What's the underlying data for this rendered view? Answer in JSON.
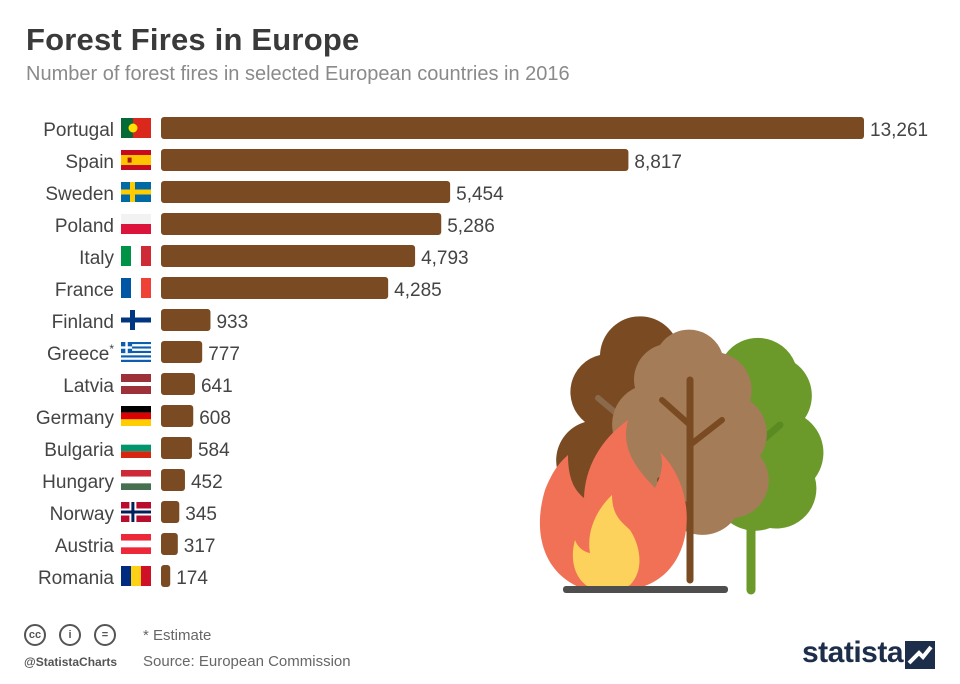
{
  "header": {
    "title": "Forest Fires in Europe",
    "subtitle": "Number of forest fires in selected European countries in 2016"
  },
  "chart_data": {
    "type": "bar",
    "orientation": "horizontal",
    "categories": [
      "Portugal",
      "Spain",
      "Sweden",
      "Poland",
      "Italy",
      "France",
      "Finland",
      "Greece",
      "Latvia",
      "Germany",
      "Bulgaria",
      "Hungary",
      "Norway",
      "Austria",
      "Romania"
    ],
    "category_marks": [
      "",
      "",
      "",
      "",
      "",
      "",
      "",
      "*",
      "",
      "",
      "",
      "",
      "",
      "",
      ""
    ],
    "values": [
      13261,
      8817,
      5454,
      5286,
      4793,
      4285,
      933,
      777,
      641,
      608,
      584,
      452,
      345,
      317,
      174
    ],
    "value_labels": [
      "13,261",
      "8,817",
      "5,454",
      "5,286",
      "4,793",
      "4,285",
      "933",
      "777",
      "641",
      "608",
      "584",
      "452",
      "345",
      "317",
      "174"
    ],
    "flags": [
      "portugal",
      "spain",
      "sweden",
      "poland",
      "italy",
      "france",
      "finland",
      "greece",
      "latvia",
      "germany",
      "bulgaria",
      "hungary",
      "norway",
      "austria",
      "romania"
    ],
    "xlim": [
      0,
      13261
    ],
    "bar_color": "#7a4b22",
    "grid": false,
    "legend": "none"
  },
  "illustration": {
    "icons": [
      "brown-tree-icon",
      "tan-tree-icon",
      "green-tree-icon",
      "fire-icon"
    ],
    "colors": {
      "brown_tree": "#7a4b22",
      "tan_tree": "#a47c57",
      "green_tree": "#6b9a2a",
      "flame_outer": "#f07156",
      "flame_inner": "#fdd25c",
      "ground": "#4e4e4e"
    }
  },
  "footer": {
    "footnote": "* Estimate",
    "source": "Source: European Commission",
    "handle": "@StatistaCharts",
    "brand": "statista",
    "cc_icons": [
      "cc-icon",
      "attribution-icon",
      "no-derivatives-icon"
    ]
  }
}
